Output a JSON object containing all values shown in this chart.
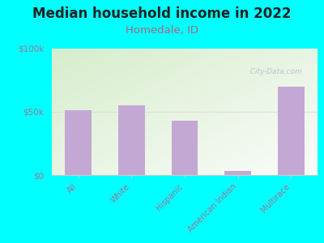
{
  "title": "Median household income in 2022",
  "subtitle": "Homedale, ID",
  "categories": [
    "All",
    "White",
    "Hispanic",
    "American Indian",
    "Multirace"
  ],
  "values": [
    51000,
    55000,
    43000,
    3000,
    70000
  ],
  "bar_color": "#c4a8d4",
  "background_outer": "#00FFFF",
  "background_inner_top_left": "#d6edcc",
  "background_inner_top_right": "#e8f0e8",
  "background_inner_bottom": "#f8f8f5",
  "ylim": [
    0,
    100000
  ],
  "ytick_labels": [
    "$0",
    "$50k",
    "$100k"
  ],
  "ytick_values": [
    0,
    50000,
    100000
  ],
  "title_fontsize": 12,
  "subtitle_fontsize": 9.5,
  "subtitle_color": "#b06080",
  "tick_label_color": "#997799",
  "watermark": "  City-Data.com",
  "watermark_color": "#aabbcc",
  "gridline_color": "#dddddd",
  "spine_color": "#cccccc"
}
